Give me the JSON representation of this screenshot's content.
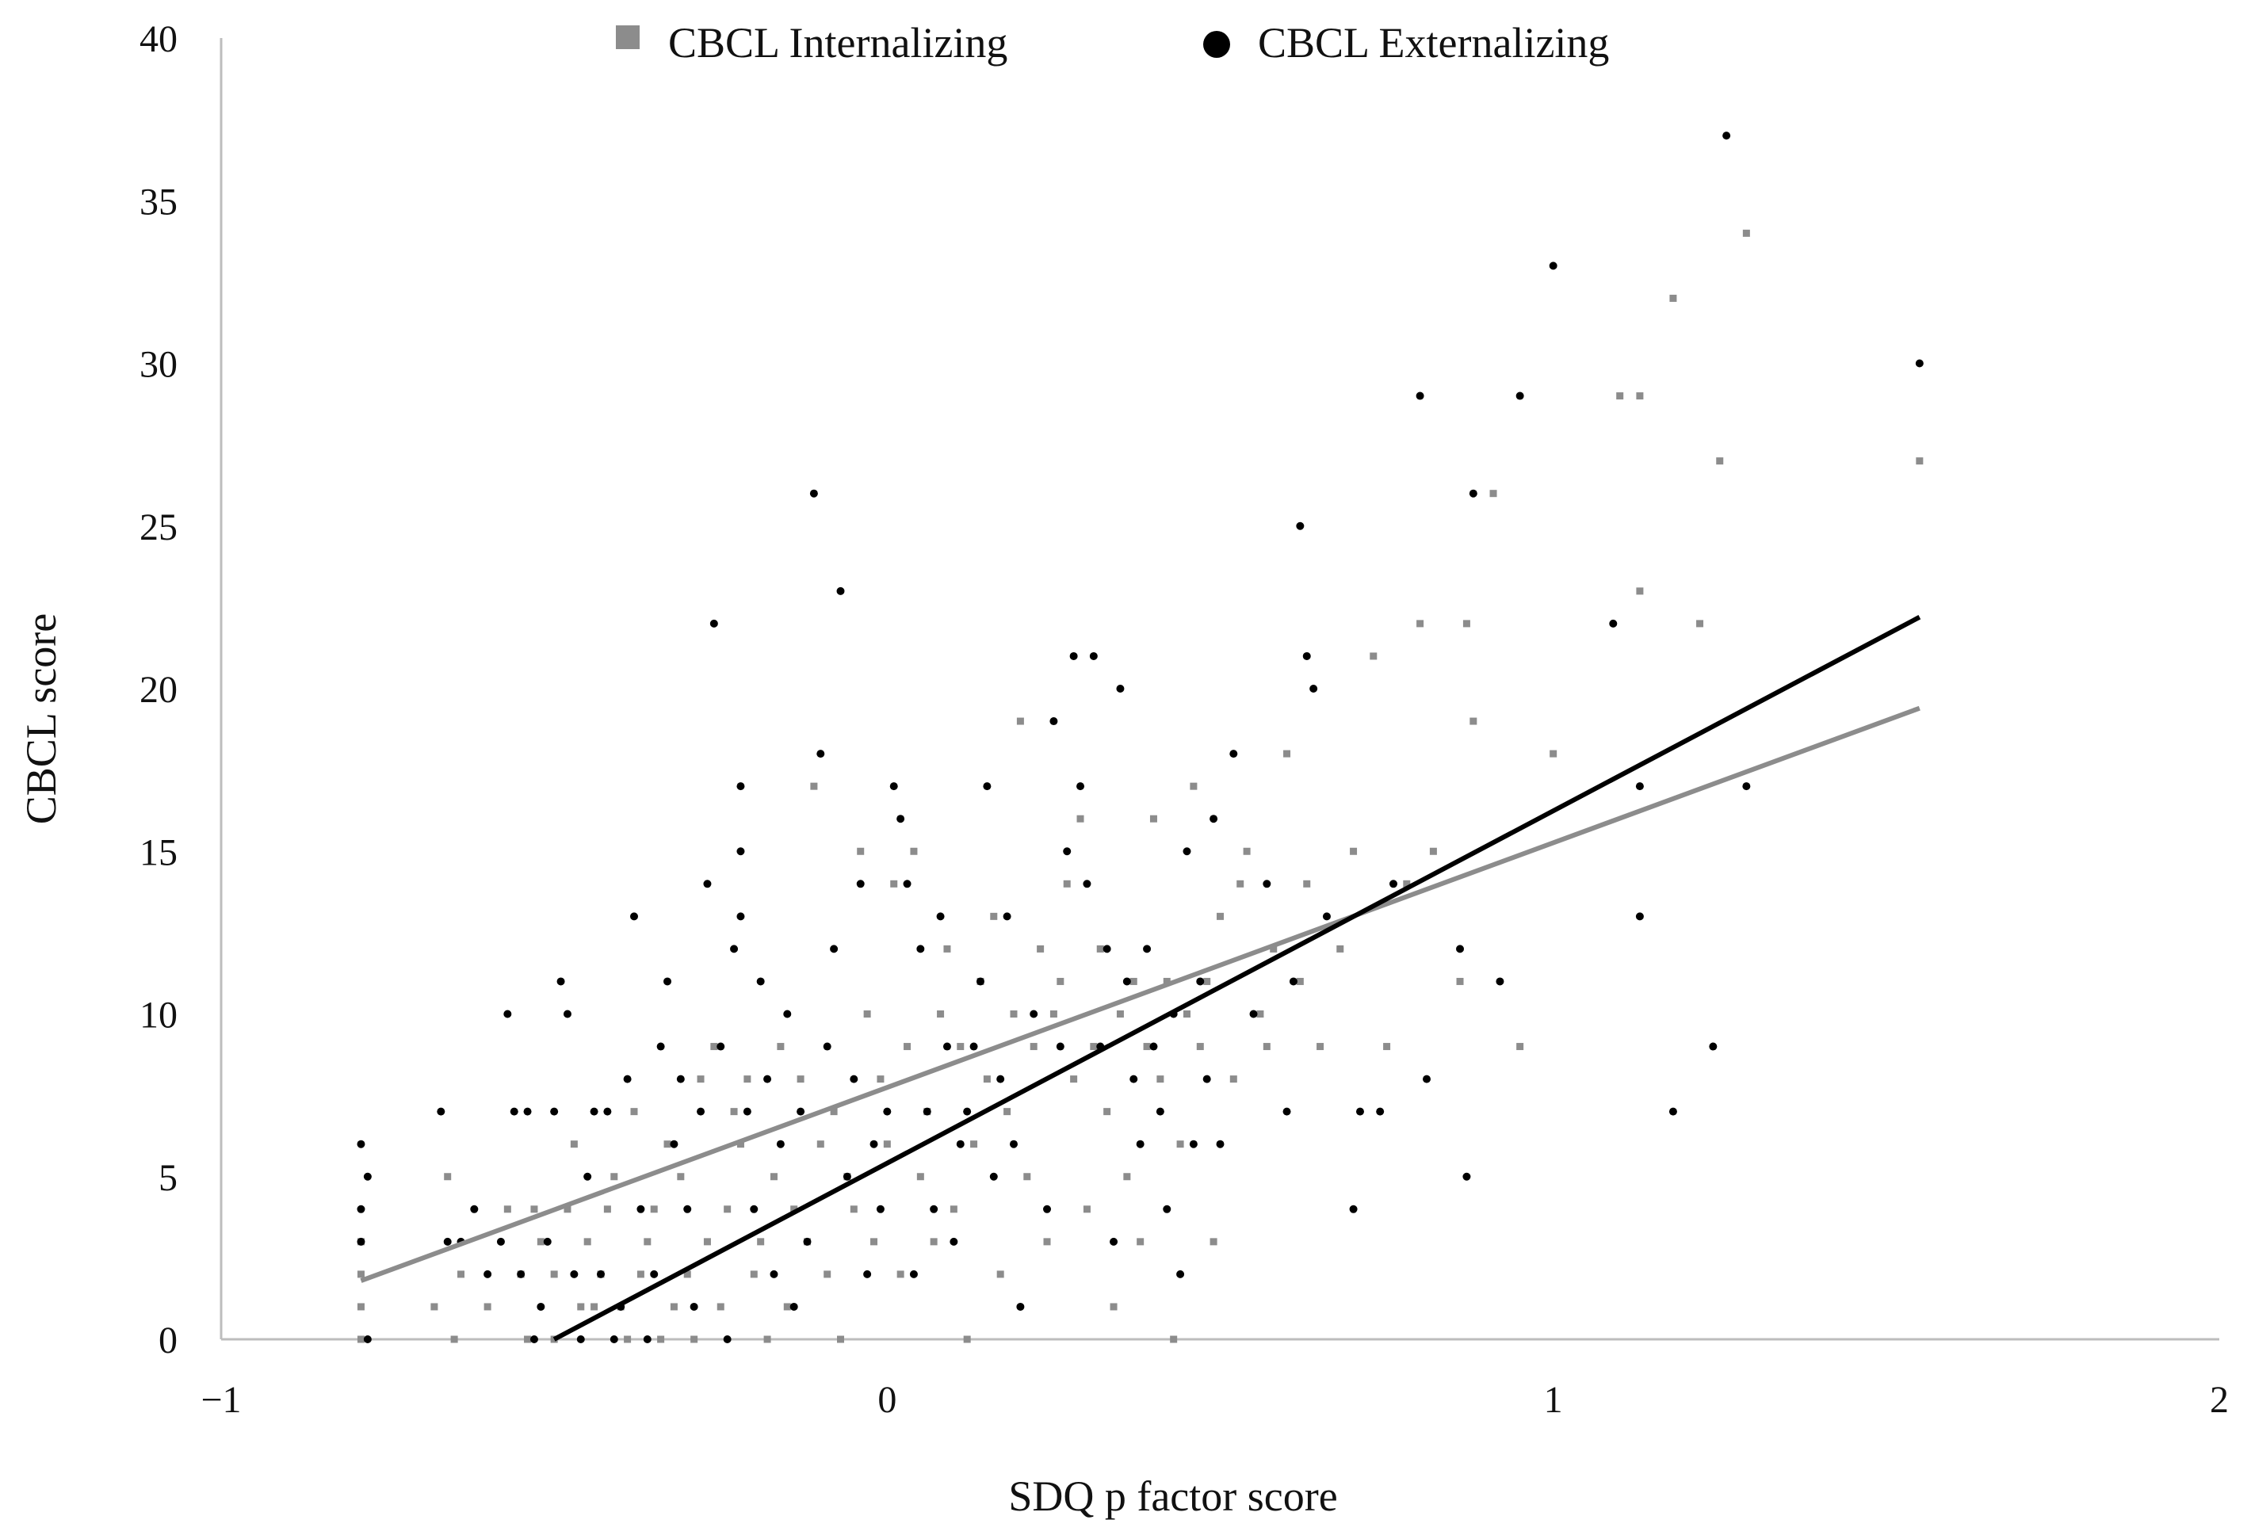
{
  "chart_data": {
    "type": "scatter",
    "title": "",
    "xlabel": "SDQ p factor score",
    "ylabel": "CBCL score",
    "xlim": [
      -1,
      2
    ],
    "ylim": [
      0,
      40
    ],
    "xticks": [
      -1,
      0,
      1,
      2
    ],
    "xtick_labels": [
      "−1",
      "0",
      "1",
      "2"
    ],
    "yticks": [
      0,
      5,
      10,
      15,
      20,
      25,
      30,
      35,
      40
    ],
    "ytick_labels": [
      "0",
      "5",
      "10",
      "15",
      "20",
      "25",
      "30",
      "35",
      "40"
    ],
    "grid": false,
    "legend_position": "top-center",
    "series": [
      {
        "name": "CBCL Internalizing",
        "marker": "square",
        "color": "#8c8c8c",
        "points": [
          [
            -0.79,
            0
          ],
          [
            -0.79,
            1
          ],
          [
            -0.79,
            2
          ],
          [
            -0.79,
            3
          ],
          [
            -0.68,
            1
          ],
          [
            -0.66,
            5
          ],
          [
            -0.65,
            0
          ],
          [
            -0.64,
            2
          ],
          [
            -0.6,
            1
          ],
          [
            -0.57,
            4
          ],
          [
            -0.55,
            2
          ],
          [
            -0.54,
            0
          ],
          [
            -0.53,
            4
          ],
          [
            -0.52,
            3
          ],
          [
            -0.5,
            0
          ],
          [
            -0.5,
            2
          ],
          [
            -0.48,
            4
          ],
          [
            -0.47,
            6
          ],
          [
            -0.46,
            1
          ],
          [
            -0.45,
            3
          ],
          [
            -0.44,
            1
          ],
          [
            -0.43,
            2
          ],
          [
            -0.42,
            4
          ],
          [
            -0.41,
            5
          ],
          [
            -0.4,
            1
          ],
          [
            -0.39,
            0
          ],
          [
            -0.38,
            7
          ],
          [
            -0.37,
            2
          ],
          [
            -0.36,
            3
          ],
          [
            -0.35,
            4
          ],
          [
            -0.34,
            0
          ],
          [
            -0.33,
            6
          ],
          [
            -0.32,
            1
          ],
          [
            -0.31,
            5
          ],
          [
            -0.3,
            2
          ],
          [
            -0.29,
            0
          ],
          [
            -0.28,
            8
          ],
          [
            -0.27,
            3
          ],
          [
            -0.26,
            9
          ],
          [
            -0.25,
            1
          ],
          [
            -0.24,
            4
          ],
          [
            -0.23,
            7
          ],
          [
            -0.22,
            6
          ],
          [
            -0.21,
            8
          ],
          [
            -0.2,
            2
          ],
          [
            -0.19,
            3
          ],
          [
            -0.18,
            0
          ],
          [
            -0.17,
            5
          ],
          [
            -0.16,
            9
          ],
          [
            -0.15,
            1
          ],
          [
            -0.14,
            4
          ],
          [
            -0.13,
            8
          ],
          [
            -0.12,
            3
          ],
          [
            -0.11,
            17
          ],
          [
            -0.1,
            6
          ],
          [
            -0.09,
            2
          ],
          [
            -0.08,
            7
          ],
          [
            -0.07,
            0
          ],
          [
            -0.06,
            5
          ],
          [
            -0.05,
            4
          ],
          [
            -0.04,
            15
          ],
          [
            -0.03,
            10
          ],
          [
            -0.02,
            3
          ],
          [
            -0.01,
            8
          ],
          [
            0.0,
            6
          ],
          [
            0.01,
            14
          ],
          [
            0.02,
            2
          ],
          [
            0.03,
            9
          ],
          [
            0.04,
            15
          ],
          [
            0.05,
            5
          ],
          [
            0.06,
            7
          ],
          [
            0.07,
            3
          ],
          [
            0.08,
            10
          ],
          [
            0.09,
            12
          ],
          [
            0.1,
            4
          ],
          [
            0.11,
            9
          ],
          [
            0.12,
            0
          ],
          [
            0.13,
            6
          ],
          [
            0.14,
            11
          ],
          [
            0.15,
            8
          ],
          [
            0.16,
            13
          ],
          [
            0.17,
            2
          ],
          [
            0.18,
            7
          ],
          [
            0.19,
            10
          ],
          [
            0.2,
            19
          ],
          [
            0.21,
            5
          ],
          [
            0.22,
            9
          ],
          [
            0.23,
            12
          ],
          [
            0.24,
            3
          ],
          [
            0.25,
            10
          ],
          [
            0.26,
            11
          ],
          [
            0.27,
            14
          ],
          [
            0.28,
            8
          ],
          [
            0.29,
            16
          ],
          [
            0.3,
            4
          ],
          [
            0.31,
            9
          ],
          [
            0.32,
            12
          ],
          [
            0.33,
            7
          ],
          [
            0.34,
            1
          ],
          [
            0.35,
            10
          ],
          [
            0.36,
            5
          ],
          [
            0.37,
            11
          ],
          [
            0.38,
            3
          ],
          [
            0.39,
            9
          ],
          [
            0.4,
            16
          ],
          [
            0.41,
            8
          ],
          [
            0.42,
            11
          ],
          [
            0.43,
            0
          ],
          [
            0.44,
            6
          ],
          [
            0.45,
            10
          ],
          [
            0.46,
            17
          ],
          [
            0.47,
            9
          ],
          [
            0.48,
            11
          ],
          [
            0.49,
            3
          ],
          [
            0.5,
            13
          ],
          [
            0.52,
            8
          ],
          [
            0.53,
            14
          ],
          [
            0.54,
            15
          ],
          [
            0.56,
            10
          ],
          [
            0.57,
            9
          ],
          [
            0.58,
            12
          ],
          [
            0.6,
            18
          ],
          [
            0.62,
            11
          ],
          [
            0.63,
            14
          ],
          [
            0.65,
            9
          ],
          [
            0.68,
            12
          ],
          [
            0.7,
            15
          ],
          [
            0.73,
            21
          ],
          [
            0.75,
            9
          ],
          [
            0.78,
            14
          ],
          [
            0.8,
            22
          ],
          [
            0.82,
            15
          ],
          [
            0.86,
            11
          ],
          [
            0.87,
            22
          ],
          [
            0.88,
            19
          ],
          [
            0.91,
            26
          ],
          [
            0.95,
            9
          ],
          [
            1.0,
            18
          ],
          [
            1.1,
            29
          ],
          [
            1.13,
            23
          ],
          [
            1.13,
            29
          ],
          [
            1.18,
            32
          ],
          [
            1.22,
            22
          ],
          [
            1.25,
            27
          ],
          [
            1.29,
            34
          ],
          [
            1.55,
            27
          ]
        ]
      },
      {
        "name": "CBCL Externalizing",
        "marker": "circle",
        "color": "#000000",
        "points": [
          [
            -0.79,
            6
          ],
          [
            -0.79,
            4
          ],
          [
            -0.79,
            3
          ],
          [
            -0.78,
            5
          ],
          [
            -0.78,
            0
          ],
          [
            -0.67,
            7
          ],
          [
            -0.66,
            3
          ],
          [
            -0.64,
            3
          ],
          [
            -0.62,
            4
          ],
          [
            -0.6,
            2
          ],
          [
            -0.58,
            3
          ],
          [
            -0.57,
            10
          ],
          [
            -0.56,
            7
          ],
          [
            -0.55,
            2
          ],
          [
            -0.54,
            7
          ],
          [
            -0.53,
            0
          ],
          [
            -0.52,
            1
          ],
          [
            -0.51,
            3
          ],
          [
            -0.5,
            7
          ],
          [
            -0.49,
            11
          ],
          [
            -0.48,
            10
          ],
          [
            -0.47,
            2
          ],
          [
            -0.46,
            0
          ],
          [
            -0.45,
            5
          ],
          [
            -0.44,
            7
          ],
          [
            -0.43,
            2
          ],
          [
            -0.42,
            7
          ],
          [
            -0.41,
            0
          ],
          [
            -0.4,
            1
          ],
          [
            -0.39,
            8
          ],
          [
            -0.38,
            13
          ],
          [
            -0.37,
            4
          ],
          [
            -0.36,
            0
          ],
          [
            -0.35,
            2
          ],
          [
            -0.34,
            9
          ],
          [
            -0.33,
            11
          ],
          [
            -0.32,
            6
          ],
          [
            -0.31,
            8
          ],
          [
            -0.3,
            4
          ],
          [
            -0.29,
            1
          ],
          [
            -0.28,
            7
          ],
          [
            -0.27,
            14
          ],
          [
            -0.26,
            22
          ],
          [
            -0.25,
            9
          ],
          [
            -0.24,
            0
          ],
          [
            -0.23,
            12
          ],
          [
            -0.22,
            17
          ],
          [
            -0.22,
            15
          ],
          [
            -0.22,
            13
          ],
          [
            -0.21,
            7
          ],
          [
            -0.2,
            4
          ],
          [
            -0.19,
            11
          ],
          [
            -0.18,
            8
          ],
          [
            -0.17,
            2
          ],
          [
            -0.16,
            6
          ],
          [
            -0.15,
            10
          ],
          [
            -0.14,
            1
          ],
          [
            -0.13,
            7
          ],
          [
            -0.12,
            3
          ],
          [
            -0.11,
            26
          ],
          [
            -0.1,
            18
          ],
          [
            -0.09,
            9
          ],
          [
            -0.08,
            12
          ],
          [
            -0.07,
            23
          ],
          [
            -0.06,
            5
          ],
          [
            -0.05,
            8
          ],
          [
            -0.04,
            14
          ],
          [
            -0.03,
            2
          ],
          [
            -0.02,
            6
          ],
          [
            -0.01,
            4
          ],
          [
            0.0,
            7
          ],
          [
            0.01,
            17
          ],
          [
            0.02,
            16
          ],
          [
            0.03,
            14
          ],
          [
            0.04,
            2
          ],
          [
            0.05,
            12
          ],
          [
            0.06,
            7
          ],
          [
            0.07,
            4
          ],
          [
            0.08,
            13
          ],
          [
            0.09,
            9
          ],
          [
            0.1,
            3
          ],
          [
            0.11,
            6
          ],
          [
            0.12,
            7
          ],
          [
            0.13,
            9
          ],
          [
            0.14,
            11
          ],
          [
            0.15,
            17
          ],
          [
            0.16,
            5
          ],
          [
            0.17,
            8
          ],
          [
            0.18,
            13
          ],
          [
            0.19,
            6
          ],
          [
            0.2,
            1
          ],
          [
            0.22,
            10
          ],
          [
            0.24,
            4
          ],
          [
            0.25,
            19
          ],
          [
            0.26,
            9
          ],
          [
            0.27,
            15
          ],
          [
            0.28,
            21
          ],
          [
            0.29,
            17
          ],
          [
            0.3,
            14
          ],
          [
            0.31,
            21
          ],
          [
            0.32,
            9
          ],
          [
            0.33,
            12
          ],
          [
            0.34,
            3
          ],
          [
            0.35,
            20
          ],
          [
            0.36,
            11
          ],
          [
            0.37,
            8
          ],
          [
            0.38,
            6
          ],
          [
            0.39,
            12
          ],
          [
            0.4,
            9
          ],
          [
            0.41,
            7
          ],
          [
            0.42,
            4
          ],
          [
            0.43,
            10
          ],
          [
            0.44,
            2
          ],
          [
            0.45,
            15
          ],
          [
            0.46,
            6
          ],
          [
            0.47,
            11
          ],
          [
            0.48,
            8
          ],
          [
            0.49,
            16
          ],
          [
            0.5,
            6
          ],
          [
            0.52,
            18
          ],
          [
            0.55,
            10
          ],
          [
            0.57,
            14
          ],
          [
            0.6,
            7
          ],
          [
            0.61,
            11
          ],
          [
            0.62,
            25
          ],
          [
            0.63,
            21
          ],
          [
            0.64,
            20
          ],
          [
            0.66,
            13
          ],
          [
            0.7,
            4
          ],
          [
            0.71,
            7
          ],
          [
            0.74,
            7
          ],
          [
            0.76,
            14
          ],
          [
            0.8,
            29
          ],
          [
            0.81,
            8
          ],
          [
            0.86,
            12
          ],
          [
            0.87,
            5
          ],
          [
            0.88,
            26
          ],
          [
            0.92,
            11
          ],
          [
            0.95,
            29
          ],
          [
            1.0,
            33
          ],
          [
            1.09,
            22
          ],
          [
            1.13,
            13
          ],
          [
            1.13,
            17
          ],
          [
            1.18,
            7
          ],
          [
            1.24,
            9
          ],
          [
            1.26,
            37
          ],
          [
            1.29,
            17
          ],
          [
            1.55,
            30
          ]
        ]
      }
    ],
    "trendlines": [
      {
        "series": "CBCL Internalizing",
        "color": "#8c8c8c",
        "x": [
          -0.79,
          1.55
        ],
        "y": [
          1.8,
          19.4
        ]
      },
      {
        "series": "CBCL Externalizing",
        "color": "#000000",
        "x": [
          -0.5,
          1.55
        ],
        "y": [
          0.0,
          22.2
        ]
      }
    ]
  }
}
